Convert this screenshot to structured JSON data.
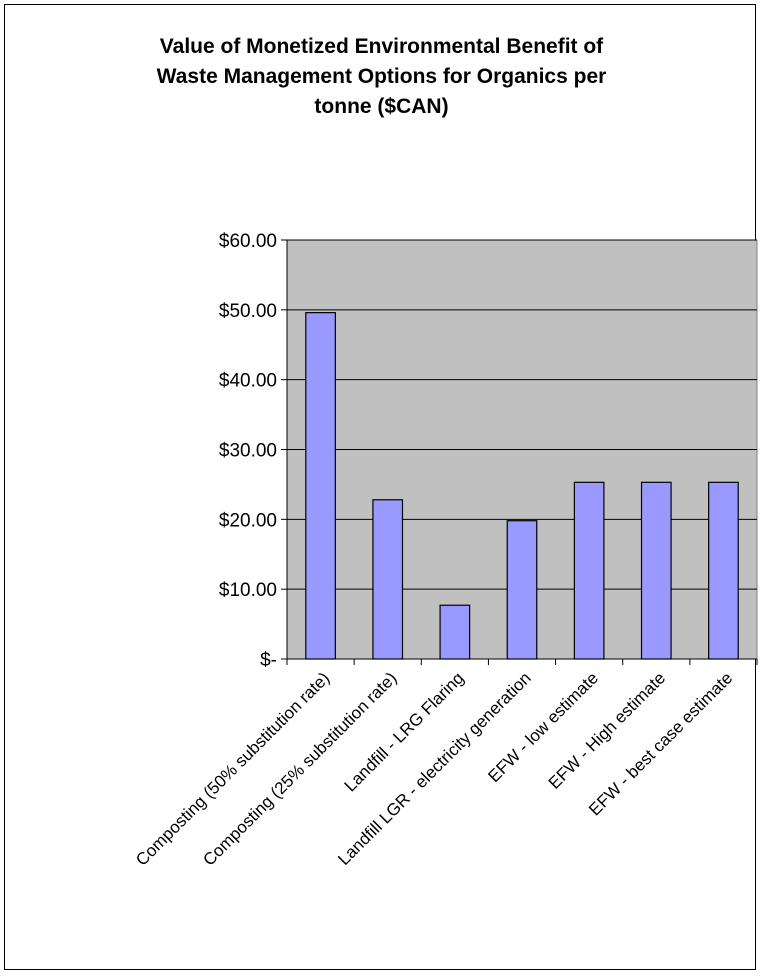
{
  "chart_data": {
    "type": "bar",
    "title_lines": [
      "Value of Monetized Environmental Benefit of",
      "Waste Management Options for Organics per",
      "tonne ($CAN)"
    ],
    "categories": [
      "Composting (50% substitution rate)",
      "Composting (25% substitution rate)",
      "Landfill - LRG Flaring",
      "Landfill LGR - electricity generation",
      "EFW - low estimate",
      "EFW - High estimate",
      "EFW - best case estimate"
    ],
    "values": [
      49.6,
      22.8,
      7.7,
      19.8,
      25.3,
      25.3,
      25.3
    ],
    "ylim": [
      0,
      60
    ],
    "yticks": [
      0,
      10,
      20,
      30,
      40,
      50,
      60
    ],
    "ytick_labels": [
      "$-",
      "$10.00",
      "$20.00",
      "$30.00",
      "$40.00",
      "$50.00",
      "$60.00"
    ],
    "grid": true,
    "legend": "none",
    "colors": {
      "bar_fill": "#9999FF",
      "plot_background": "#C0C0C0",
      "gridline": "#000000"
    }
  }
}
